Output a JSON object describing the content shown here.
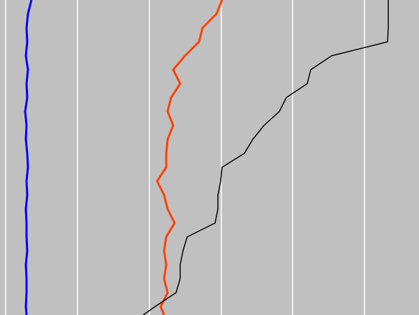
{
  "chart_data": {
    "type": "line",
    "orientation": "vertical",
    "background": "#c0c0c0",
    "grid": true,
    "grid_color": "#ffffff",
    "x": [
      0,
      20,
      40,
      60,
      80,
      100,
      120,
      140,
      160,
      180,
      200,
      220,
      240,
      260,
      280,
      300,
      320,
      340,
      360,
      380,
      400,
      420,
      440,
      452
    ],
    "xlim": [
      0,
      452
    ],
    "ylim": [
      0,
      600
    ],
    "yticks": [
      8,
      111,
      214,
      317,
      419,
      522
    ],
    "series": [
      {
        "color": "#0000ff",
        "values": [
          45,
          40,
          38,
          39,
          37,
          40,
          38,
          39,
          36,
          38,
          37,
          39,
          40,
          38,
          39,
          37,
          38,
          38,
          39,
          37,
          38,
          38,
          37,
          38
        ]
      },
      {
        "color": "#ff4000",
        "values": [
          318,
          310,
          290,
          285,
          265,
          248,
          258,
          245,
          240,
          248,
          240,
          238,
          238,
          225,
          235,
          240,
          250,
          238,
          235,
          238,
          235,
          240,
          230,
          235
        ]
      },
      {
        "color": "#000000",
        "values": [
          556,
          556,
          556,
          555,
          475,
          445,
          440,
          410,
          400,
          378,
          362,
          350,
          318,
          316,
          312,
          312,
          308,
          268,
          262,
          258,
          258,
          252,
          222,
          205
        ]
      }
    ]
  }
}
